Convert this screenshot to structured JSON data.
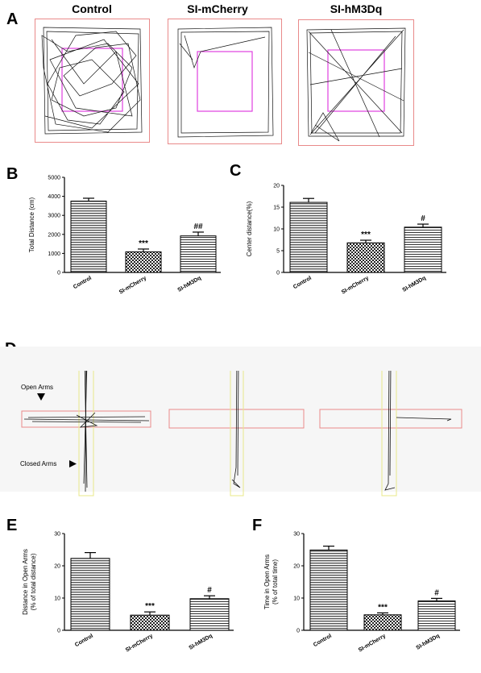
{
  "panels": {
    "A": "A",
    "B": "B",
    "C": "C",
    "D": "D",
    "E": "E",
    "F": "F"
  },
  "open_field": {
    "titles": [
      "Control",
      "SI-mCherry",
      "SI-hM3Dq"
    ]
  },
  "maze": {
    "open_arms_label": "Open Arms",
    "closed_arms_label": "Closed Arms"
  },
  "colors": {
    "arena_border": "#e98a8a",
    "center_zone": "#e040e0",
    "open_arm": "#e98a8a",
    "closed_arm": "#e8e88a"
  },
  "chart_data": [
    {
      "id": "B",
      "type": "bar",
      "categories": [
        "Control",
        "SI-mCherry",
        "SI-hM3Dq"
      ],
      "values": [
        3750,
        1080,
        1920
      ],
      "errors": [
        150,
        150,
        200
      ],
      "significance": [
        "",
        "***",
        "##"
      ],
      "ylabel": "Total Distance (cm)",
      "ylim": [
        0,
        5000
      ],
      "yticks": [
        "0",
        "1000",
        "2000",
        "3000",
        "4000",
        "5000"
      ]
    },
    {
      "id": "C",
      "type": "bar",
      "categories": [
        "Control",
        "SI-mCherry",
        "SI-hM3Dq"
      ],
      "values": [
        16.1,
        6.8,
        10.4
      ],
      "errors": [
        0.9,
        0.6,
        0.7
      ],
      "significance": [
        "",
        "***",
        "#"
      ],
      "ylabel": "Center distance(%)",
      "ylim": [
        0,
        20
      ],
      "yticks": [
        "0",
        "5",
        "10",
        "15",
        "20"
      ]
    },
    {
      "id": "E",
      "type": "bar",
      "categories": [
        "Control",
        "SI-mCherry",
        "SI-hM3Dq"
      ],
      "values": [
        22.3,
        4.7,
        9.8
      ],
      "errors": [
        1.8,
        1.0,
        0.9
      ],
      "significance": [
        "",
        "***",
        "#"
      ],
      "ylabel": "Distance in Open Arms",
      "ylabel2": "(% of total distance)",
      "ylim": [
        0,
        30
      ],
      "yticks": [
        "0",
        "10",
        "20",
        "30"
      ]
    },
    {
      "id": "F",
      "type": "bar",
      "categories": [
        "Control",
        "SI-mCherry",
        "SI-hM3Dq"
      ],
      "values": [
        24.9,
        4.8,
        9.1
      ],
      "errors": [
        1.2,
        0.6,
        0.8
      ],
      "significance": [
        "",
        "***",
        "#"
      ],
      "ylabel": "Time in Open Arms",
      "ylabel2": "(% of total time)",
      "ylim": [
        0,
        30
      ],
      "yticks": [
        "0",
        "10",
        "20",
        "30"
      ]
    }
  ]
}
